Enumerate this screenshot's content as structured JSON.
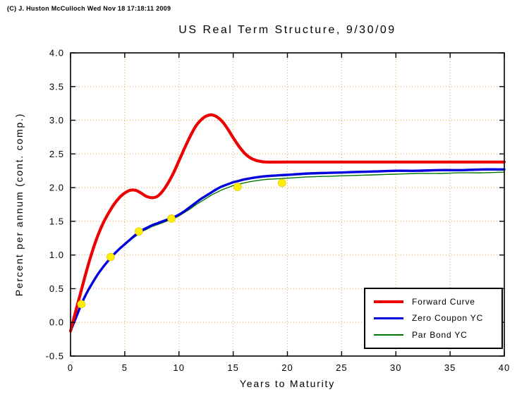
{
  "header": {
    "copyright": "(C) J. Huston McCulloch Wed Nov 18 17:18:11 2009"
  },
  "chart_data": {
    "type": "line",
    "title": "US Real Term Structure, 9/30/09",
    "xlabel": "Years to Maturity",
    "ylabel": "Percent per annum (cont. comp.)",
    "xlim": [
      0,
      40
    ],
    "ylim": [
      -0.5,
      4.0
    ],
    "xtick_step": 5,
    "ytick_step": 0.5,
    "grid": true,
    "grid_color": "#efa23f",
    "axis_color": "#000000",
    "legend_position": "lower right",
    "series": [
      {
        "name": "Forward Curve",
        "color": "#ee0000",
        "width": 4.2,
        "points": [
          [
            0,
            -0.13
          ],
          [
            0.5,
            0.18
          ],
          [
            1,
            0.48
          ],
          [
            1.5,
            0.78
          ],
          [
            2,
            1.05
          ],
          [
            2.5,
            1.28
          ],
          [
            3,
            1.47
          ],
          [
            3.5,
            1.62
          ],
          [
            4,
            1.75
          ],
          [
            4.5,
            1.85
          ],
          [
            5,
            1.92
          ],
          [
            5.5,
            1.96
          ],
          [
            6,
            1.96
          ],
          [
            6.5,
            1.92
          ],
          [
            7,
            1.87
          ],
          [
            7.5,
            1.85
          ],
          [
            8,
            1.87
          ],
          [
            8.5,
            1.95
          ],
          [
            9,
            2.07
          ],
          [
            9.5,
            2.22
          ],
          [
            10,
            2.4
          ],
          [
            10.5,
            2.58
          ],
          [
            11,
            2.75
          ],
          [
            11.5,
            2.9
          ],
          [
            12,
            3.0
          ],
          [
            12.5,
            3.06
          ],
          [
            13,
            3.08
          ],
          [
            13.5,
            3.05
          ],
          [
            14,
            2.98
          ],
          [
            14.5,
            2.87
          ],
          [
            15,
            2.74
          ],
          [
            15.5,
            2.62
          ],
          [
            16,
            2.52
          ],
          [
            16.5,
            2.45
          ],
          [
            17,
            2.41
          ],
          [
            17.5,
            2.39
          ],
          [
            18,
            2.38
          ],
          [
            20,
            2.38
          ],
          [
            25,
            2.38
          ],
          [
            30,
            2.38
          ],
          [
            35,
            2.38
          ],
          [
            40,
            2.38
          ]
        ]
      },
      {
        "name": "Zero Coupon YC",
        "color": "#0000dd",
        "width": 3.4,
        "points": [
          [
            0,
            -0.13
          ],
          [
            0.5,
            0.07
          ],
          [
            1,
            0.27
          ],
          [
            1.5,
            0.44
          ],
          [
            2,
            0.58
          ],
          [
            2.5,
            0.71
          ],
          [
            3,
            0.82
          ],
          [
            3.5,
            0.92
          ],
          [
            4,
            1.01
          ],
          [
            4.5,
            1.09
          ],
          [
            5,
            1.16
          ],
          [
            5.5,
            1.23
          ],
          [
            6,
            1.3
          ],
          [
            6.5,
            1.36
          ],
          [
            7,
            1.4
          ],
          [
            7.5,
            1.44
          ],
          [
            8,
            1.47
          ],
          [
            8.5,
            1.5
          ],
          [
            9,
            1.53
          ],
          [
            9.5,
            1.56
          ],
          [
            10,
            1.6
          ],
          [
            10.5,
            1.65
          ],
          [
            11,
            1.71
          ],
          [
            11.5,
            1.77
          ],
          [
            12,
            1.83
          ],
          [
            12.5,
            1.88
          ],
          [
            13,
            1.93
          ],
          [
            13.5,
            1.98
          ],
          [
            14,
            2.02
          ],
          [
            14.5,
            2.05
          ],
          [
            15,
            2.08
          ],
          [
            15.5,
            2.1
          ],
          [
            16,
            2.12
          ],
          [
            17,
            2.15
          ],
          [
            18,
            2.17
          ],
          [
            19,
            2.18
          ],
          [
            20,
            2.19
          ],
          [
            22,
            2.21
          ],
          [
            24,
            2.22
          ],
          [
            26,
            2.23
          ],
          [
            28,
            2.24
          ],
          [
            30,
            2.25
          ],
          [
            32,
            2.25
          ],
          [
            34,
            2.26
          ],
          [
            36,
            2.26
          ],
          [
            38,
            2.27
          ],
          [
            40,
            2.27
          ]
        ]
      },
      {
        "name": "Par Bond YC",
        "color": "#007700",
        "width": 1.4,
        "points": [
          [
            0,
            -0.13
          ],
          [
            0.5,
            0.07
          ],
          [
            1,
            0.27
          ],
          [
            1.5,
            0.44
          ],
          [
            2,
            0.58
          ],
          [
            2.5,
            0.71
          ],
          [
            3,
            0.82
          ],
          [
            3.5,
            0.92
          ],
          [
            4,
            1.0
          ],
          [
            4.5,
            1.08
          ],
          [
            5,
            1.15
          ],
          [
            5.5,
            1.22
          ],
          [
            6,
            1.28
          ],
          [
            6.5,
            1.34
          ],
          [
            7,
            1.38
          ],
          [
            7.5,
            1.42
          ],
          [
            8,
            1.45
          ],
          [
            8.5,
            1.48
          ],
          [
            9,
            1.51
          ],
          [
            9.5,
            1.54
          ],
          [
            10,
            1.58
          ],
          [
            10.5,
            1.63
          ],
          [
            11,
            1.68
          ],
          [
            11.5,
            1.74
          ],
          [
            12,
            1.79
          ],
          [
            12.5,
            1.84
          ],
          [
            13,
            1.89
          ],
          [
            13.5,
            1.93
          ],
          [
            14,
            1.97
          ],
          [
            14.5,
            2.0
          ],
          [
            15,
            2.03
          ],
          [
            15.5,
            2.05
          ],
          [
            16,
            2.07
          ],
          [
            17,
            2.1
          ],
          [
            18,
            2.12
          ],
          [
            19,
            2.13
          ],
          [
            20,
            2.14
          ],
          [
            22,
            2.16
          ],
          [
            24,
            2.17
          ],
          [
            26,
            2.18
          ],
          [
            28,
            2.19
          ],
          [
            30,
            2.2
          ],
          [
            32,
            2.21
          ],
          [
            34,
            2.21
          ],
          [
            36,
            2.22
          ],
          [
            38,
            2.22
          ],
          [
            40,
            2.23
          ]
        ]
      }
    ],
    "markers": {
      "color": "#ffee00",
      "radius": 5.5,
      "points": [
        [
          1,
          0.27
        ],
        [
          3.7,
          0.97
        ],
        [
          6.3,
          1.35
        ],
        [
          9.3,
          1.54
        ],
        [
          15.4,
          2.01
        ],
        [
          19.5,
          2.07
        ]
      ]
    }
  }
}
